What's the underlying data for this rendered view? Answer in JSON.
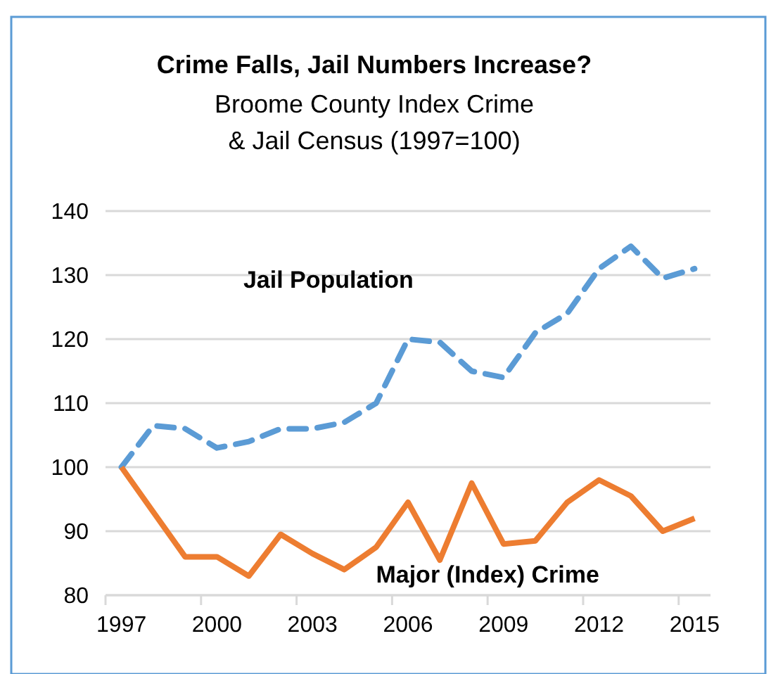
{
  "chart_data": {
    "type": "line",
    "title": "Crime Falls, Jail Numbers Increase?",
    "subtitle": "Broome County Index Crime\n& Jail Census (1997=100)",
    "x": [
      1997,
      1998,
      1999,
      2000,
      2001,
      2002,
      2003,
      2004,
      2005,
      2006,
      2007,
      2008,
      2009,
      2010,
      2011,
      2012,
      2013,
      2014,
      2015
    ],
    "series": [
      {
        "name": "Jail Population",
        "color": "#5b9bd5",
        "line_style": "dashed",
        "values": [
          100,
          106.5,
          106,
          103,
          104,
          106,
          106,
          107,
          110,
          120,
          119.5,
          115,
          114,
          121,
          124,
          131,
          134.5,
          129.5,
          131
        ]
      },
      {
        "name": "Major (Index) Crime",
        "color": "#ed7d31",
        "line_style": "solid",
        "values": [
          100,
          93,
          86,
          86,
          83,
          89.5,
          86.5,
          84,
          87.5,
          94.5,
          85.5,
          97.5,
          88,
          88.5,
          94.5,
          98,
          95.5,
          90,
          92
        ]
      }
    ],
    "xlim": [
      1996.5,
      2015.5
    ],
    "xticks": [
      1997,
      2000,
      2003,
      2006,
      2009,
      2012,
      2015
    ],
    "ylim": [
      80,
      140
    ],
    "yticks": [
      80,
      90,
      100,
      110,
      120,
      130,
      140
    ],
    "grid": "y",
    "legend": false
  }
}
